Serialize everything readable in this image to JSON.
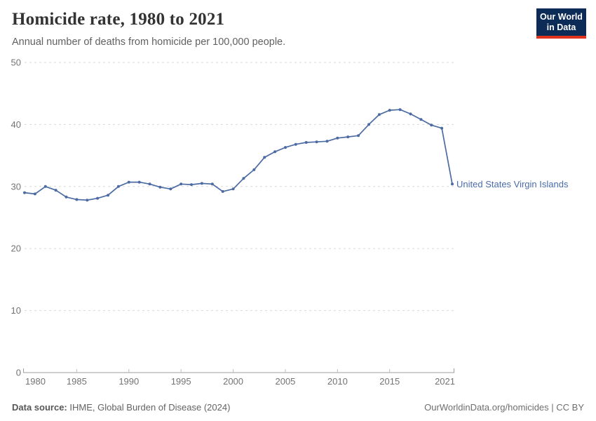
{
  "header": {
    "title": "Homicide rate, 1980 to 2021",
    "subtitle": "Annual number of deaths from homicide per 100,000 people.",
    "logo": {
      "line1": "Our World",
      "line2": "in Data"
    }
  },
  "footer": {
    "source_label": "Data source:",
    "source_text": " IHME, Global Burden of Disease (2024)",
    "rights": "OurWorldinData.org/homicides | CC BY"
  },
  "colors": {
    "line": "#4c6ba3",
    "entity_label": "#4a6cab",
    "grid": "#dadada",
    "axis": "#9e9e9e",
    "tick": "#bdbdbd",
    "tick_text": "#737373",
    "logo_bg": "#0d2b57",
    "logo_bar": "#e0331e"
  },
  "chart_data": {
    "type": "line",
    "title": "Homicide rate, 1980 to 2021",
    "subtitle": "Annual number of deaths from homicide per 100,000 people.",
    "xlabel": "",
    "ylabel": "",
    "xlim": [
      1980,
      2021
    ],
    "ylim": [
      0,
      50
    ],
    "x_ticks": [
      1980,
      1985,
      1990,
      1995,
      2000,
      2005,
      2010,
      2015,
      2021
    ],
    "y_ticks": [
      0,
      10,
      20,
      30,
      40,
      50
    ],
    "grid": "horizontal-dashed",
    "legend_position": "end-of-line-label",
    "x": [
      1980,
      1981,
      1982,
      1983,
      1984,
      1985,
      1986,
      1987,
      1988,
      1989,
      1990,
      1991,
      1992,
      1993,
      1994,
      1995,
      1996,
      1997,
      1998,
      1999,
      2000,
      2001,
      2002,
      2003,
      2004,
      2005,
      2006,
      2007,
      2008,
      2009,
      2010,
      2011,
      2012,
      2013,
      2014,
      2015,
      2016,
      2017,
      2018,
      2019,
      2020,
      2021
    ],
    "series": [
      {
        "name": "United States Virgin Islands",
        "values": [
          29.0,
          28.8,
          30.0,
          29.4,
          28.3,
          27.9,
          27.8,
          28.1,
          28.6,
          30.0,
          30.7,
          30.7,
          30.4,
          29.9,
          29.6,
          30.4,
          30.3,
          30.5,
          30.4,
          29.2,
          29.6,
          31.3,
          32.7,
          34.7,
          35.6,
          36.3,
          36.8,
          37.1,
          37.2,
          37.3,
          37.8,
          38.0,
          38.2,
          40.0,
          41.6,
          42.3,
          42.4,
          41.7,
          40.8,
          39.9,
          39.4,
          30.4
        ]
      }
    ]
  }
}
